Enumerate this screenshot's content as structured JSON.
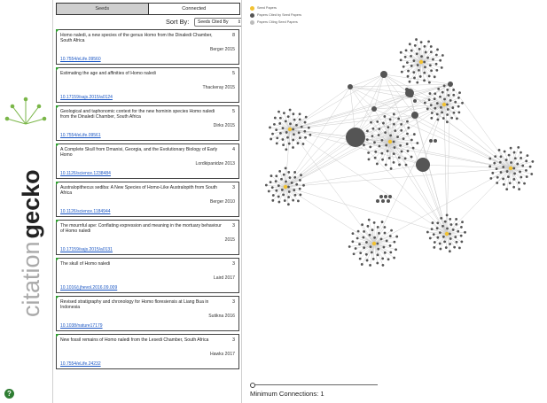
{
  "app": {
    "brand": {
      "word_1": "citation",
      "word_2": "gecko"
    },
    "help_icon": "?"
  },
  "tabs": [
    {
      "label": "Seeds",
      "active": true
    },
    {
      "label": "Connected",
      "active": false
    }
  ],
  "sort": {
    "label": "Sort By:",
    "selected": "Seeds Cited By"
  },
  "papers": [
    {
      "title": "Homo naledi, a new species of the genus Homo from the Dinaledi Chamber, South Africa",
      "count": "8",
      "author": "Berger 2015",
      "doi": "10.7554/eLife.09560"
    },
    {
      "title": "Estimating the age and affinities of Homo naledi",
      "count": "5",
      "author": "Thackeray 2015",
      "doi": "10.17159/sajs.2015/a0124"
    },
    {
      "title": "Geological and taphonomic context for the new hominin species Homo naledi from the Dinaledi Chamber, South Africa",
      "count": "5",
      "author": "Dirks 2015",
      "doi": "10.7554/eLife.09561"
    },
    {
      "title": "A Complete Skull from Dmanisi, Georgia, and the Evolutionary Biology of Early Homo",
      "count": "4",
      "author": "Lordkipanidze 2013",
      "doi": "10.1126/science.1238484"
    },
    {
      "title": "Australopithecus sediba: A New Species of Homo-Like Australopith from South Africa",
      "count": "3",
      "author": "Berger 2010",
      "doi": "10.1126/science.1184944"
    },
    {
      "title": "The mournful ape: Conflating expression and meaning in the mortuary behaviour of Homo naledi",
      "count": "3",
      "author": "2015",
      "doi": "10.17159/sajs.2015/a0131"
    },
    {
      "title": "The skull of Homo naledi",
      "count": "3",
      "author": "Laird 2017",
      "doi": "10.1016/j.jhevol.2016.09.009"
    },
    {
      "title": "Revised stratigraphy and chronology for Homo floresiensis at Liang Bua in Indonesia",
      "count": "3",
      "author": "Sutikna 2016",
      "doi": "10.1038/nature17179"
    },
    {
      "title": "New fossil remains of Homo naledi from the Lesedi Chamber, South Africa",
      "count": "3",
      "author": "Hawks 2017",
      "doi": "10.7554/eLife.24232"
    }
  ],
  "legend": [
    {
      "label": "Seed Papers",
      "color": "#f2c231"
    },
    {
      "label": "Papers Cited by Seed Papers",
      "color": "#555555"
    },
    {
      "label": "Papers Citing Seed Papers",
      "color": "#bbbbbb"
    }
  ],
  "colors": {
    "seed": "#f2c231",
    "node": "#555555",
    "edge": "#cccccc",
    "brand_green": "#7ab648",
    "brand_orange": "#f7941d",
    "brand_gray": "#aaaaaa"
  },
  "slider": {
    "label": "Minimum Connections:",
    "value": "1",
    "level": 0
  }
}
